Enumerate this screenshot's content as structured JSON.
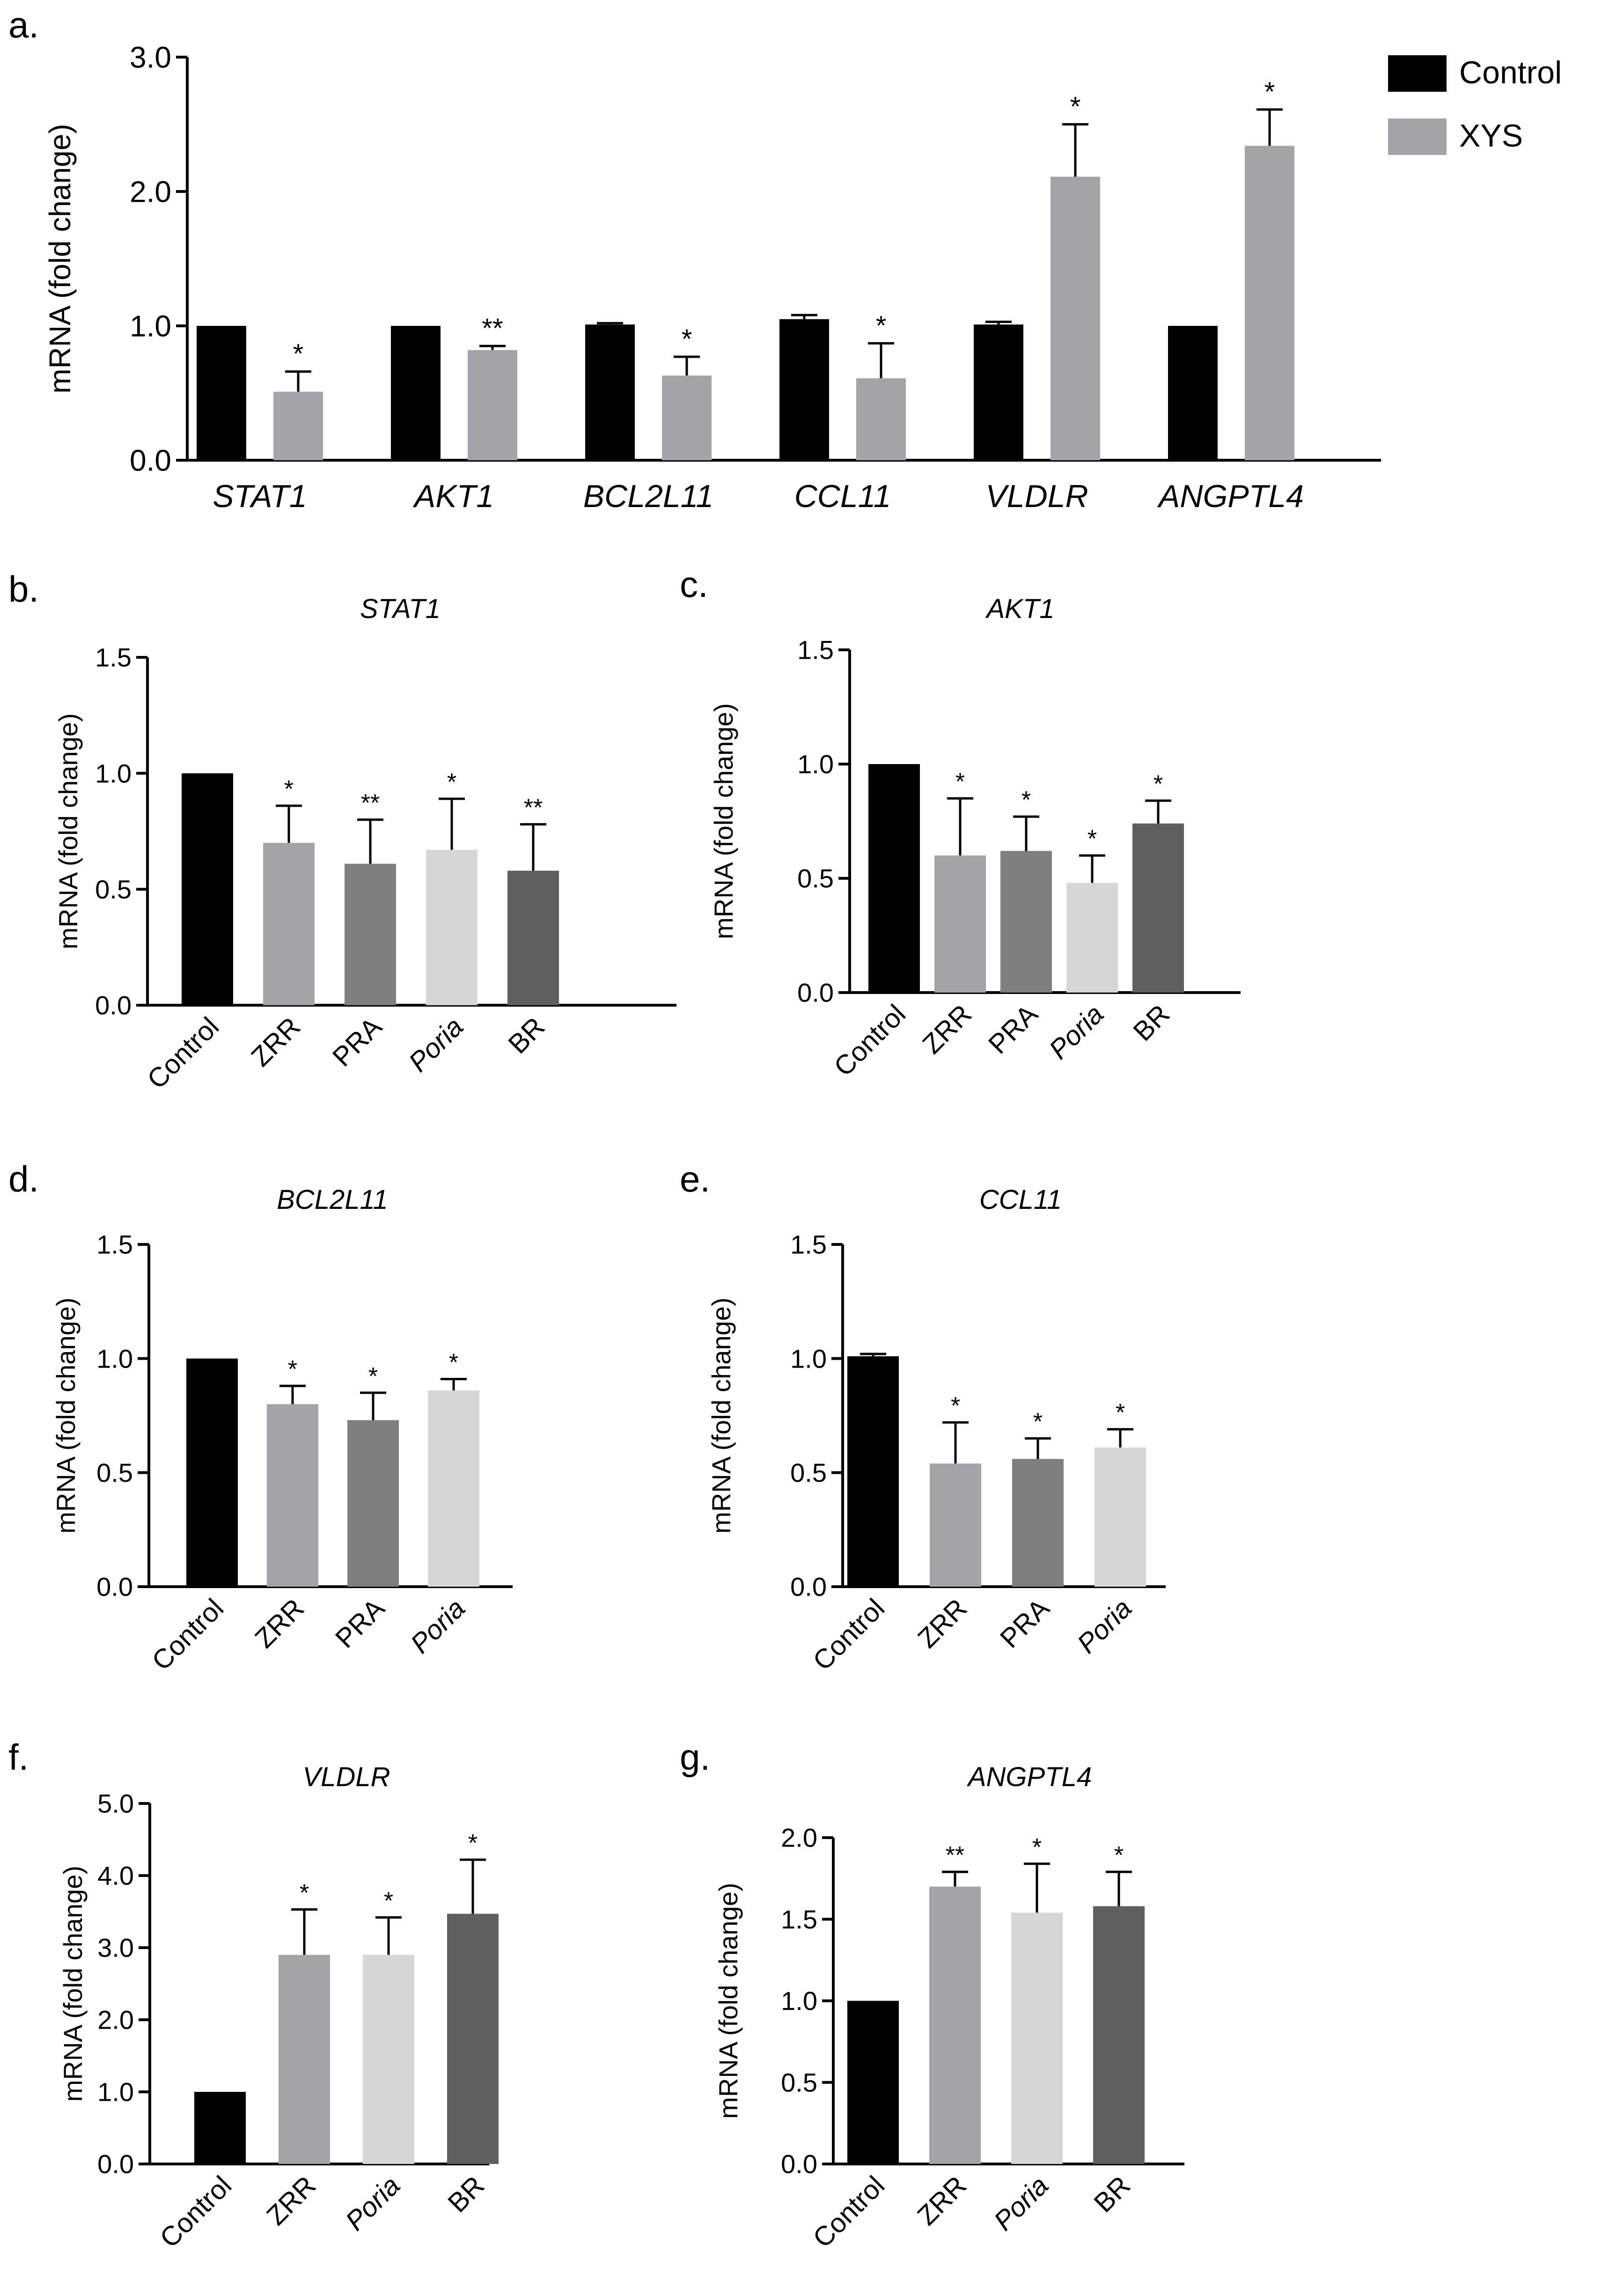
{
  "colors": {
    "Control": "#000000",
    "XYS": "#A4A4A8",
    "ZRR": "#A4A4A8",
    "PRA": "#7F7F7F",
    "Poria": "#D6D6D6",
    "BR": "#5F5F5F"
  },
  "chart_data": [
    {
      "id": "a",
      "panel_label": "a.",
      "type": "bar",
      "title": "",
      "ylabel": "mRNA (fold change)",
      "ylim": [
        0,
        3
      ],
      "yticks": [
        "0.0",
        "1.0",
        "2.0",
        "3.0"
      ],
      "categories": [
        "STAT1",
        "AKT1",
        "BCL2L11",
        "CCL11",
        "VLDLR",
        "ANGPTL4"
      ],
      "legend": {
        "position": "top-right",
        "entries": [
          "Control",
          "XYS"
        ]
      },
      "series": [
        {
          "name": "Control",
          "values": [
            1.0,
            1.0,
            1.01,
            1.05,
            1.01,
            1.0
          ],
          "errors": [
            0.0,
            0.0,
            0.01,
            0.03,
            0.02,
            0.0
          ],
          "sig": [
            "",
            "",
            "",
            "",
            "",
            ""
          ]
        },
        {
          "name": "XYS",
          "values": [
            0.51,
            0.82,
            0.63,
            0.61,
            2.11,
            2.34
          ],
          "errors": [
            0.15,
            0.03,
            0.14,
            0.26,
            0.39,
            0.27
          ],
          "sig": [
            "*",
            "**",
            "*",
            "*",
            "*",
            "*"
          ]
        }
      ]
    },
    {
      "id": "b",
      "panel_label": "b.",
      "type": "bar",
      "title": "STAT1",
      "ylabel": "mRNA (fold change)",
      "ylim": [
        0,
        1.5
      ],
      "yticks": [
        "0.0",
        "0.5",
        "1.0",
        "1.5"
      ],
      "categories": [
        "Control",
        "ZRR",
        "PRA",
        "Poria",
        "BR"
      ],
      "values": [
        1.0,
        0.7,
        0.61,
        0.67,
        0.58
      ],
      "errors": [
        0.0,
        0.16,
        0.19,
        0.22,
        0.2
      ],
      "sig": [
        "",
        "*",
        "**",
        "*",
        "**"
      ]
    },
    {
      "id": "c",
      "panel_label": "c.",
      "type": "bar",
      "title": "AKT1",
      "ylabel": "mRNA (fold change)",
      "ylim": [
        0,
        1.5
      ],
      "yticks": [
        "0.0",
        "0.5",
        "1.0",
        "1.5"
      ],
      "categories": [
        "Control",
        "ZRR",
        "PRA",
        "Poria",
        "BR"
      ],
      "values": [
        1.0,
        0.6,
        0.62,
        0.48,
        0.74
      ],
      "errors": [
        0.0,
        0.25,
        0.15,
        0.12,
        0.1
      ],
      "sig": [
        "",
        "*",
        "*",
        "*",
        "*"
      ]
    },
    {
      "id": "d",
      "panel_label": "d.",
      "type": "bar",
      "title": "BCL2L11",
      "ylabel": "mRNA (fold change)",
      "ylim": [
        0,
        1.5
      ],
      "yticks": [
        "0.0",
        "0.5",
        "1.0",
        "1.5"
      ],
      "categories": [
        "Control",
        "ZRR",
        "PRA",
        "Poria"
      ],
      "values": [
        1.0,
        0.8,
        0.73,
        0.86
      ],
      "errors": [
        0.0,
        0.08,
        0.12,
        0.05
      ],
      "sig": [
        "",
        "*",
        "*",
        "*"
      ]
    },
    {
      "id": "e",
      "panel_label": "e.",
      "type": "bar",
      "title": "CCL11",
      "ylabel": "mRNA (fold change)",
      "ylim": [
        0,
        1.5
      ],
      "yticks": [
        "0.0",
        "0.5",
        "1.0",
        "1.5"
      ],
      "categories": [
        "Control",
        "ZRR",
        "PRA",
        "Poria"
      ],
      "values": [
        1.01,
        0.54,
        0.56,
        0.61
      ],
      "errors": [
        0.01,
        0.18,
        0.09,
        0.08
      ],
      "sig": [
        "",
        "*",
        "*",
        "*"
      ]
    },
    {
      "id": "f",
      "panel_label": "f.",
      "type": "bar",
      "title": "VLDLR",
      "ylabel": "mRNA (fold change)",
      "ylim": [
        0,
        5
      ],
      "yticks": [
        "0.0",
        "1.0",
        "2.0",
        "3.0",
        "4.0",
        "5.0"
      ],
      "categories": [
        "Control",
        "ZRR",
        "Poria",
        "BR"
      ],
      "values": [
        1.0,
        2.9,
        2.9,
        3.47
      ],
      "errors": [
        0.0,
        0.63,
        0.52,
        0.75
      ],
      "sig": [
        "",
        "*",
        "*",
        "*"
      ]
    },
    {
      "id": "g",
      "panel_label": "g.",
      "type": "bar",
      "title": "ANGPTL4",
      "ylabel": "mRNA (fold change)",
      "ylim": [
        0,
        2
      ],
      "yticks": [
        "0.0",
        "0.5",
        "1.0",
        "1.5",
        "2.0"
      ],
      "categories": [
        "Control",
        "ZRR",
        "Poria",
        "BR"
      ],
      "values": [
        1.0,
        1.7,
        1.54,
        1.58
      ],
      "errors": [
        0.0,
        0.09,
        0.3,
        0.21
      ],
      "sig": [
        "",
        "**",
        "*",
        "*"
      ]
    }
  ]
}
